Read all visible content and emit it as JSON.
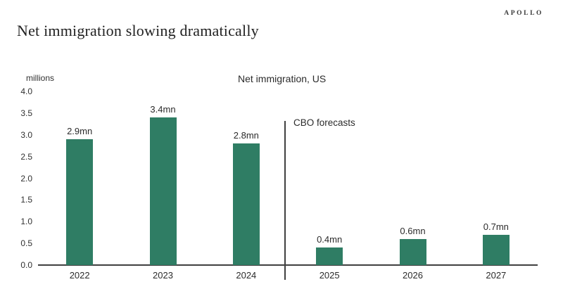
{
  "slide": {
    "title": "Net immigration slowing dramatically",
    "logo": "APOLLO"
  },
  "chart_data": {
    "type": "bar",
    "title": "Net immigration, US",
    "ylabel": "millions",
    "xlabel": "",
    "annotation": "CBO forecasts",
    "categories": [
      "2022",
      "2023",
      "2024",
      "2025",
      "2026",
      "2027"
    ],
    "values": [
      2.9,
      3.4,
      2.8,
      0.4,
      0.6,
      0.7
    ],
    "bar_labels": [
      "2.9mn",
      "3.4mn",
      "2.8mn",
      "0.4mn",
      "0.6mn",
      "0.7mn"
    ],
    "ylim": [
      0.0,
      4.0
    ],
    "yticks": [
      "4.0",
      "3.5",
      "3.0",
      "2.5",
      "2.0",
      "1.5",
      "1.0",
      "0.5",
      "0.0"
    ],
    "bar_color": "#2f7d64",
    "grid": false,
    "legend": false,
    "forecast_divider_after_index": 2
  }
}
